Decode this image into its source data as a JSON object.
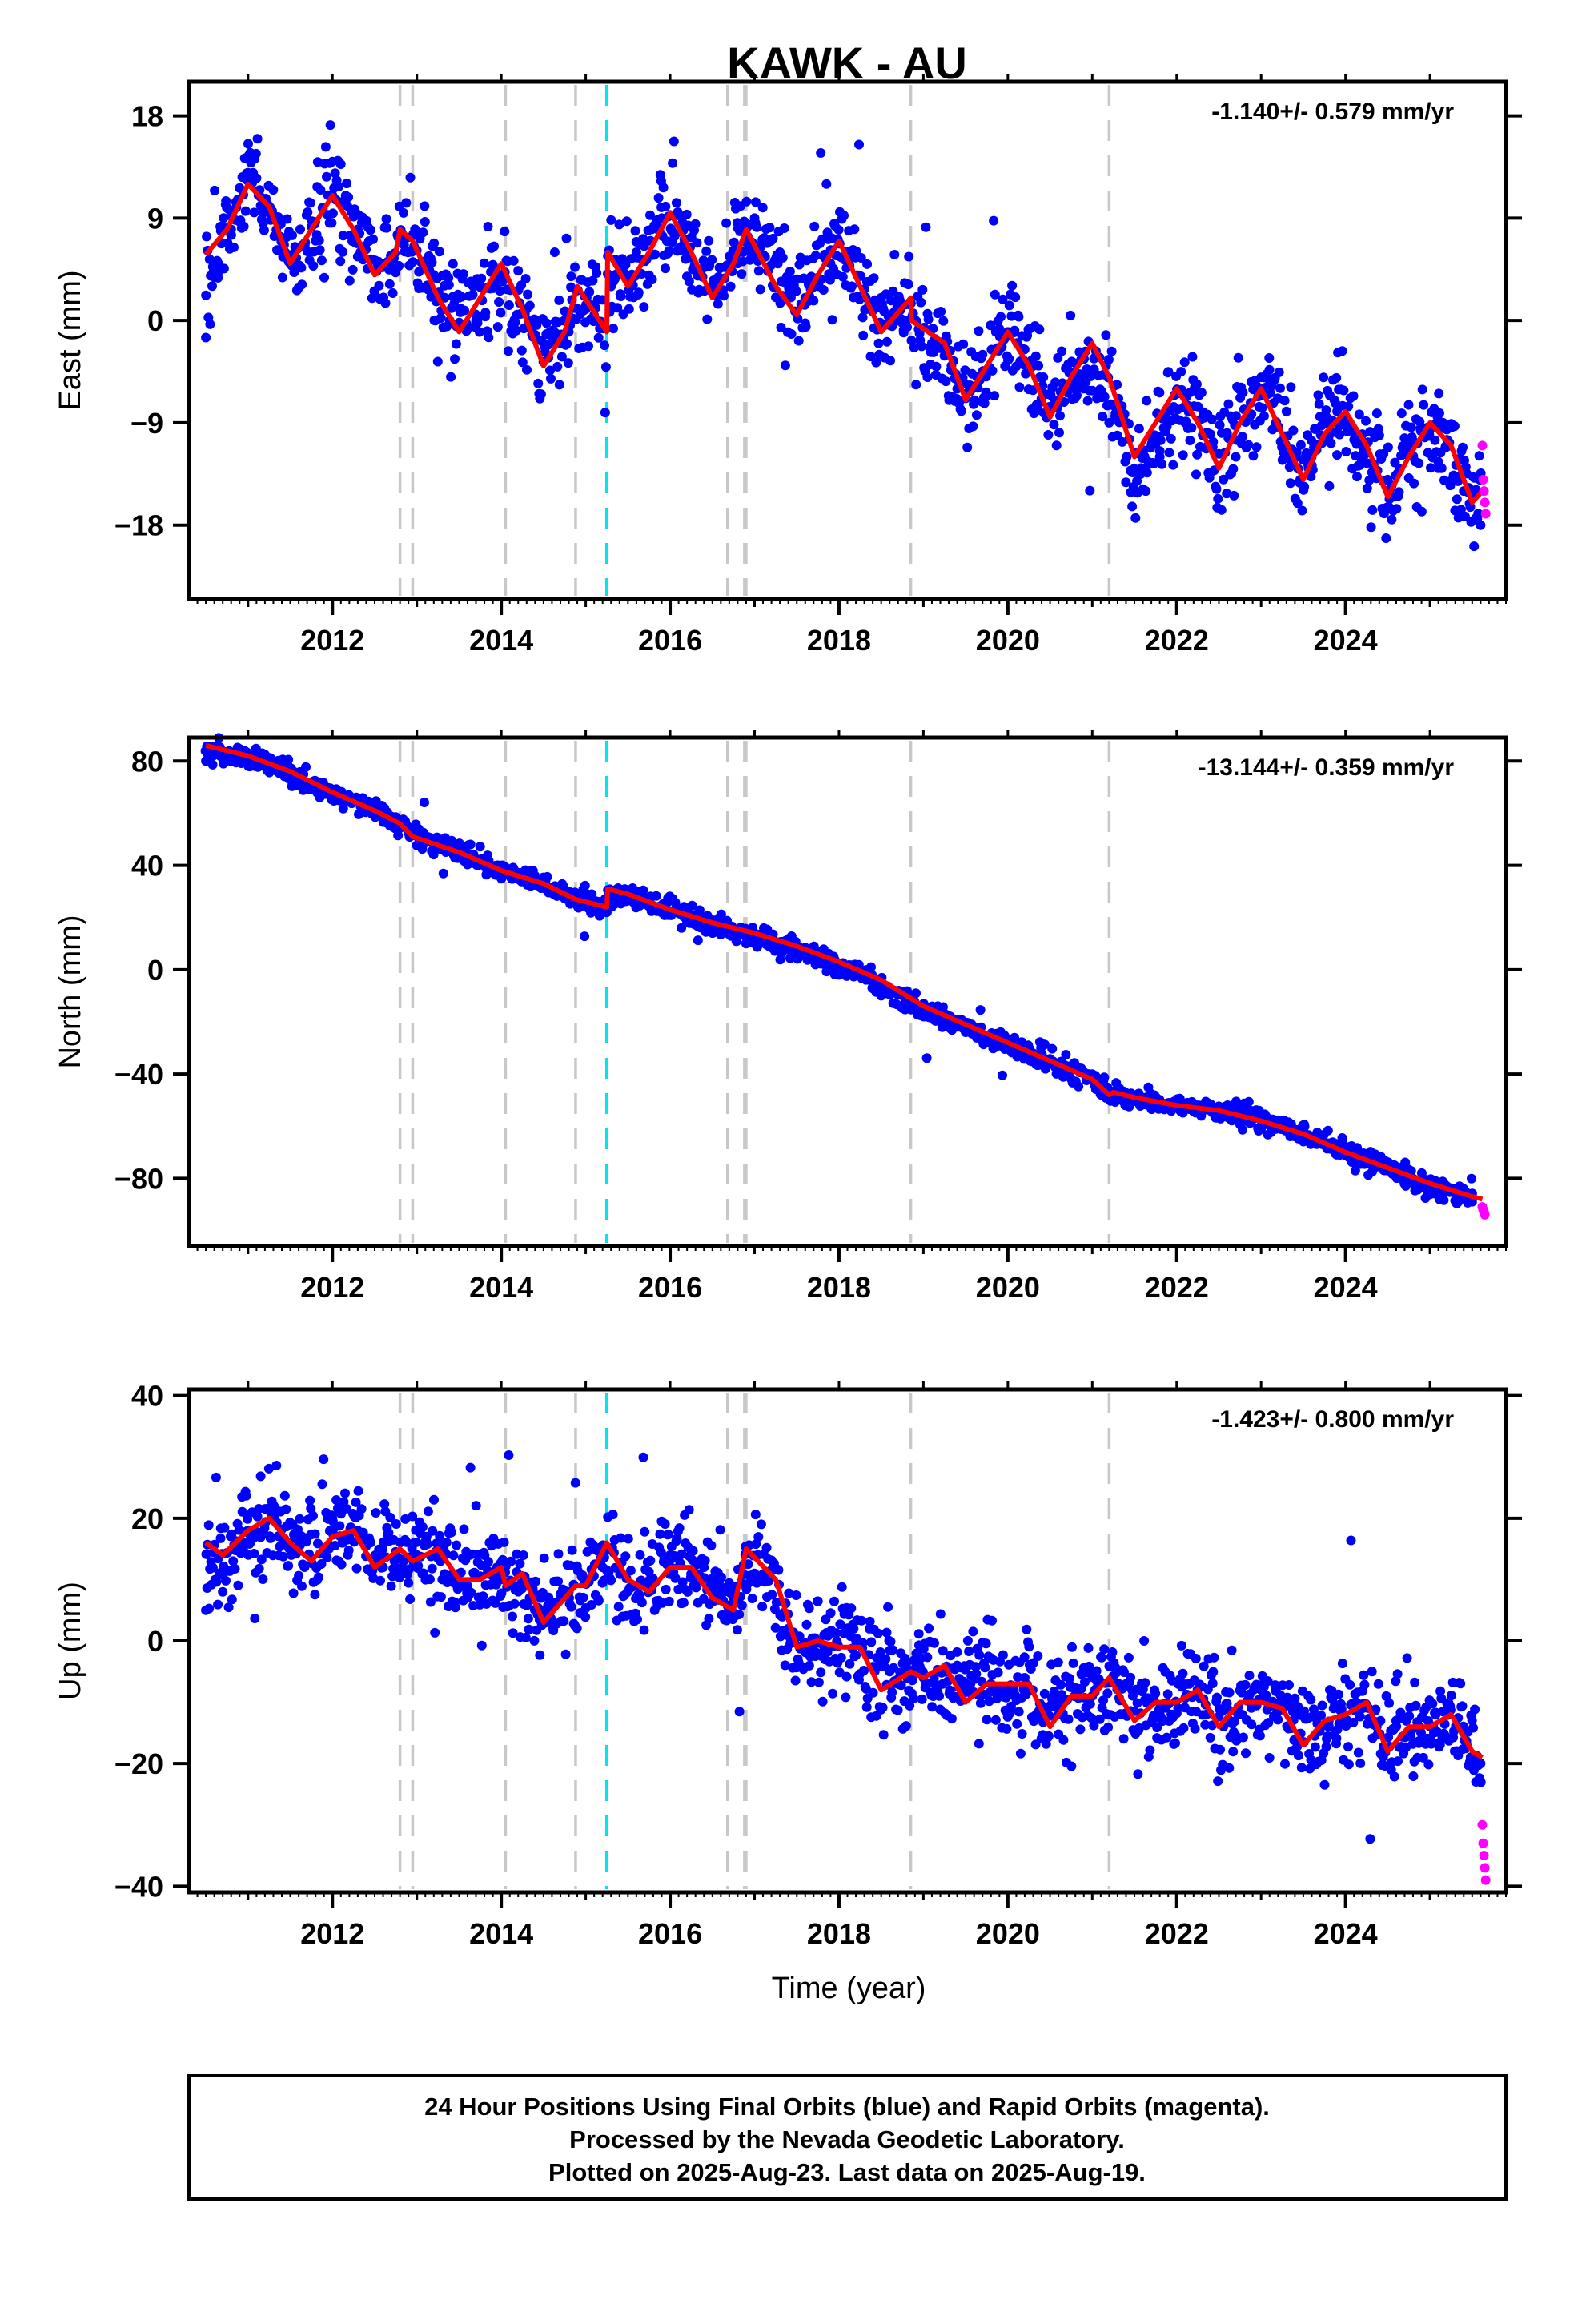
{
  "figure": {
    "title": "KAWK - AU",
    "xlabel": "Time (year)",
    "footer": [
      "24 Hour Positions Using Final Orbits (blue) and Rapid Orbits (magenta).",
      "Processed by the Nevada Geodetic Laboratory.",
      "Plotted on 2025-Aug-23. Last data on 2025-Aug-19."
    ]
  },
  "colors": {
    "final_orbits": "#0000ff",
    "rapid_orbits": "#ff00ff",
    "model_fit": "#ff0000",
    "event_lines": "#c8c8c8",
    "antenna_change_line": "#00e5ee"
  },
  "chart_data": [
    {
      "type": "scatter",
      "panel": "east",
      "ylabel": "East (mm)",
      "rate_label": "-1.140+/- 0.579 mm/yr",
      "xlim": [
        2010.3,
        2025.9
      ],
      "ylim": [
        -24.5,
        21
      ],
      "xticks": [
        2012,
        2014,
        2016,
        2018,
        2020,
        2022,
        2024
      ],
      "yticks": [
        18,
        9,
        0,
        -9,
        -18
      ],
      "series": [
        {
          "role": "final",
          "x": [
            2010.5,
            2010.8,
            2011.0,
            2011.3,
            2011.5,
            2011.8,
            2012.0,
            2012.3,
            2012.6,
            2012.9,
            2013.2,
            2013.5,
            2013.7,
            2014.0,
            2014.3,
            2014.5,
            2014.8,
            2015.0,
            2015.3,
            2015.6,
            2015.9,
            2016.2,
            2016.5,
            2016.8,
            2017.0,
            2017.3,
            2017.6,
            2017.9,
            2018.2,
            2018.5,
            2018.8,
            2019.1,
            2019.4,
            2019.7,
            2020.0,
            2020.3,
            2020.6,
            2020.9,
            2021.2,
            2021.5,
            2021.8,
            2022.1,
            2022.4,
            2022.7,
            2023.0,
            2023.3,
            2023.6,
            2023.9,
            2024.2,
            2024.5,
            2024.8,
            2025.1,
            2025.4,
            2025.6
          ],
          "y": [
            -1.5,
            8,
            13,
            9,
            5,
            7,
            11,
            8,
            5,
            6,
            4,
            2,
            0,
            4,
            1,
            -2,
            -1,
            1,
            3,
            6,
            9,
            6,
            3,
            5,
            9,
            6,
            2,
            5,
            6,
            2,
            0,
            -2,
            -6,
            -3,
            -1,
            -4,
            -7,
            -6,
            -9,
            -15,
            -12,
            -9,
            -10,
            -12,
            -5,
            -8,
            -12,
            -8,
            -10,
            -14,
            -12,
            -13,
            -15,
            -18
          ]
        },
        {
          "role": "rapid",
          "x": [
            2025.62,
            2025.63,
            2025.64,
            2025.65,
            2025.66
          ],
          "y": [
            -11,
            -14,
            -15,
            -16,
            -17
          ]
        },
        {
          "role": "model",
          "x": [
            2010.5,
            2010.75,
            2011.0,
            2011.25,
            2011.5,
            2011.75,
            2012.0,
            2012.25,
            2012.5,
            2012.75,
            2012.8,
            2012.95,
            2013.25,
            2013.5,
            2013.75,
            2014.0,
            2014.25,
            2014.5,
            2014.75,
            2014.9,
            2015.25,
            2015.26,
            2015.5,
            2015.75,
            2016.0,
            2016.25,
            2016.5,
            2016.75,
            2016.9,
            2017.25,
            2017.5,
            2017.75,
            2018.0,
            2018.25,
            2018.5,
            2018.85,
            2018.86,
            2019.25,
            2019.5,
            2019.75,
            2020.0,
            2020.25,
            2020.5,
            2020.75,
            2021.0,
            2021.2,
            2021.5,
            2021.75,
            2022.0,
            2022.25,
            2022.5,
            2022.75,
            2023.0,
            2023.25,
            2023.5,
            2023.75,
            2024.0,
            2024.25,
            2024.5,
            2024.75,
            2025.0,
            2025.25,
            2025.5,
            2025.62
          ],
          "y": [
            5.8,
            8,
            12,
            10,
            5,
            8,
            11,
            8,
            4,
            6,
            8,
            7,
            2,
            -1,
            2,
            5,
            1,
            -4,
            -1,
            3,
            -1,
            6,
            3,
            6,
            9.5,
            6,
            2,
            5,
            8,
            3,
            0.5,
            4,
            7,
            3,
            -1,
            2,
            0,
            -2,
            -7,
            -4,
            -1,
            -4,
            -8.5,
            -5,
            -2,
            -5,
            -12,
            -9,
            -6,
            -9,
            -13,
            -9,
            -6,
            -10,
            -14,
            -10,
            -8,
            -11,
            -15.5,
            -12,
            -9,
            -11,
            -16,
            -15
          ]
        }
      ],
      "events": [
        2012.8,
        2012.95,
        2014.05,
        2014.88,
        2016.68,
        2016.88,
        2016.9,
        2018.85,
        2021.2
      ],
      "antenna_change": [
        2015.25
      ]
    },
    {
      "type": "scatter",
      "panel": "north",
      "ylabel": "North (mm)",
      "rate_label": "-13.144+/- 0.359 mm/yr",
      "xlim": [
        2010.3,
        2025.9
      ],
      "ylim": [
        -106,
        89
      ],
      "xticks": [
        2012,
        2014,
        2016,
        2018,
        2020,
        2022,
        2024
      ],
      "yticks": [
        80,
        40,
        0,
        -40,
        -80
      ],
      "series": [
        {
          "role": "final",
          "x": [
            2010.5,
            2011.0,
            2011.5,
            2012.0,
            2012.5,
            2013.0,
            2013.5,
            2014.0,
            2014.5,
            2015.0,
            2015.25,
            2015.5,
            2016.0,
            2016.5,
            2017.0,
            2017.5,
            2018.0,
            2018.5,
            2019.0,
            2019.5,
            2020.0,
            2020.5,
            2021.0,
            2021.25,
            2021.5,
            2022.0,
            2022.5,
            2023.0,
            2023.5,
            2024.0,
            2024.5,
            2025.0,
            2025.5
          ],
          "y": [
            80,
            80,
            75,
            68,
            62,
            53,
            45,
            38,
            32,
            26,
            22,
            28,
            22,
            16,
            11,
            5,
            -2,
            -10,
            -18,
            -24,
            -30,
            -35,
            -42,
            -48,
            -50,
            -53,
            -54,
            -57,
            -62,
            -70,
            -77,
            -84,
            -89
          ]
        },
        {
          "role": "rapid",
          "x": [
            2025.62,
            2025.63,
            2025.64,
            2025.65
          ],
          "y": [
            -91,
            -92,
            -93,
            -94
          ]
        },
        {
          "role": "model",
          "x": [
            2010.5,
            2011.0,
            2011.5,
            2012.0,
            2012.5,
            2012.8,
            2012.95,
            2013.5,
            2014.0,
            2014.5,
            2014.88,
            2015.25,
            2015.26,
            2015.5,
            2016.0,
            2016.5,
            2016.88,
            2017.0,
            2017.5,
            2018.0,
            2018.5,
            2018.85,
            2019.0,
            2019.5,
            2020.0,
            2020.5,
            2021.0,
            2021.2,
            2021.25,
            2021.5,
            2022.0,
            2022.5,
            2023.0,
            2023.5,
            2024.0,
            2024.5,
            2025.0,
            2025.5,
            2025.62
          ],
          "y": [
            86,
            82,
            76,
            68,
            61,
            56,
            51,
            45,
            38,
            33,
            27,
            24,
            31,
            29,
            23,
            18,
            15,
            14,
            9,
            3,
            -4,
            -11,
            -14,
            -21,
            -28,
            -35,
            -42,
            -48,
            -47,
            -49,
            -52,
            -54,
            -58,
            -63,
            -70,
            -76,
            -82,
            -87,
            -88
          ]
        }
      ],
      "events": [
        2012.8,
        2012.95,
        2014.05,
        2014.88,
        2016.68,
        2016.88,
        2016.9,
        2018.85,
        2021.2
      ],
      "antenna_change": [
        2015.25
      ]
    },
    {
      "type": "scatter",
      "panel": "up",
      "ylabel": "Up (mm)",
      "rate_label": "-1.423+/- 0.800 mm/yr",
      "xlim": [
        2010.3,
        2025.9
      ],
      "ylim": [
        -41,
        41
      ],
      "xticks": [
        2012,
        2014,
        2016,
        2018,
        2020,
        2022,
        2024
      ],
      "yticks": [
        40,
        20,
        0,
        -20,
        -40
      ],
      "series": [
        {
          "role": "final",
          "x": [
            2010.5,
            2010.7,
            2011.0,
            2011.3,
            2011.6,
            2012.0,
            2012.3,
            2012.6,
            2013.0,
            2013.3,
            2013.6,
            2014.0,
            2014.4,
            2014.8,
            2015.2,
            2015.6,
            2016.0,
            2016.4,
            2016.8,
            2017.0,
            2017.4,
            2017.8,
            2018.2,
            2018.6,
            2019.0,
            2019.4,
            2019.8,
            2020.2,
            2020.6,
            2021.0,
            2021.4,
            2021.8,
            2022.2,
            2022.6,
            2023.0,
            2023.4,
            2023.8,
            2024.2,
            2024.6,
            2025.0,
            2025.4,
            2025.6
          ],
          "y": [
            5,
            8,
            18,
            22,
            16,
            20,
            18,
            12,
            14,
            10,
            7,
            10,
            5,
            8,
            12,
            9,
            14,
            12,
            7,
            11,
            2,
            -2,
            0,
            -5,
            -6,
            -4,
            -7,
            -6,
            -12,
            -9,
            -7,
            -12,
            -9,
            -11,
            -8,
            -12,
            -14,
            -11,
            -13,
            -14,
            -15,
            -20
          ]
        },
        {
          "role": "rapid",
          "x": [
            2025.62,
            2025.63,
            2025.64,
            2025.65,
            2025.66
          ],
          "y": [
            -30,
            -33,
            -35,
            -37,
            -39
          ]
        },
        {
          "role": "model",
          "x": [
            2010.5,
            2010.7,
            2011.0,
            2011.25,
            2011.5,
            2011.75,
            2012.0,
            2012.25,
            2012.5,
            2012.8,
            2012.95,
            2013.25,
            2013.5,
            2013.75,
            2014.0,
            2014.05,
            2014.25,
            2014.5,
            2014.88,
            2015.0,
            2015.25,
            2015.5,
            2015.75,
            2016.0,
            2016.25,
            2016.5,
            2016.75,
            2016.9,
            2017.25,
            2017.5,
            2017.75,
            2018.0,
            2018.25,
            2018.5,
            2018.85,
            2019.0,
            2019.25,
            2019.5,
            2019.75,
            2020.0,
            2020.25,
            2020.5,
            2020.75,
            2021.0,
            2021.2,
            2021.5,
            2021.75,
            2022.0,
            2022.25,
            2022.5,
            2022.75,
            2023.0,
            2023.25,
            2023.5,
            2023.75,
            2024.0,
            2024.25,
            2024.5,
            2024.75,
            2025.0,
            2025.25,
            2025.5,
            2025.62
          ],
          "y": [
            16,
            14,
            18,
            20,
            16,
            13,
            17,
            18,
            12,
            15,
            13,
            15,
            10,
            10,
            12,
            9,
            11,
            3,
            9,
            9,
            16,
            10,
            8,
            12,
            12,
            7,
            5,
            15,
            10,
            -1,
            0,
            -1,
            -1,
            -8,
            -5,
            -6,
            -4,
            -10,
            -7,
            -7,
            -7,
            -14,
            -9,
            -9,
            -6,
            -13,
            -10,
            -10,
            -8,
            -14,
            -10,
            -10,
            -11,
            -17,
            -13,
            -12,
            -10,
            -18,
            -14,
            -14,
            -12,
            -18,
            -19
          ]
        }
      ],
      "events": [
        2012.8,
        2012.95,
        2014.05,
        2014.88,
        2016.68,
        2016.88,
        2016.9,
        2018.85,
        2021.2
      ],
      "antenna_change": [
        2015.25
      ]
    }
  ]
}
